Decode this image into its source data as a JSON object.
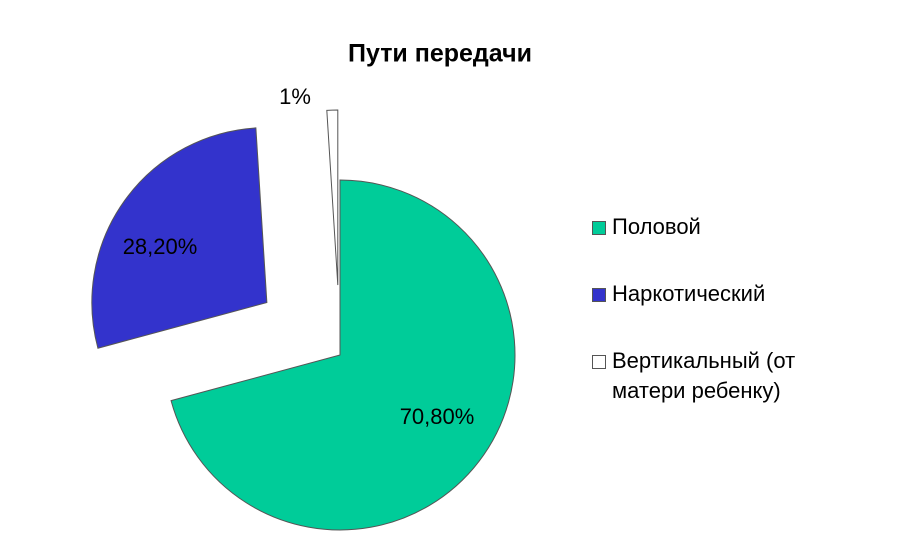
{
  "chart_data": {
    "type": "pie",
    "title": "Пути передачи",
    "categories": [
      "Половой",
      "Наркотический",
      "Вертикальный (от матери ребенку)"
    ],
    "values": [
      70.8,
      28.2,
      1
    ],
    "value_labels": [
      "70,80%",
      "28,20%",
      "1%"
    ],
    "colors": [
      "#00cc99",
      "#3333cc",
      "#ffffff"
    ],
    "legend": "right"
  }
}
